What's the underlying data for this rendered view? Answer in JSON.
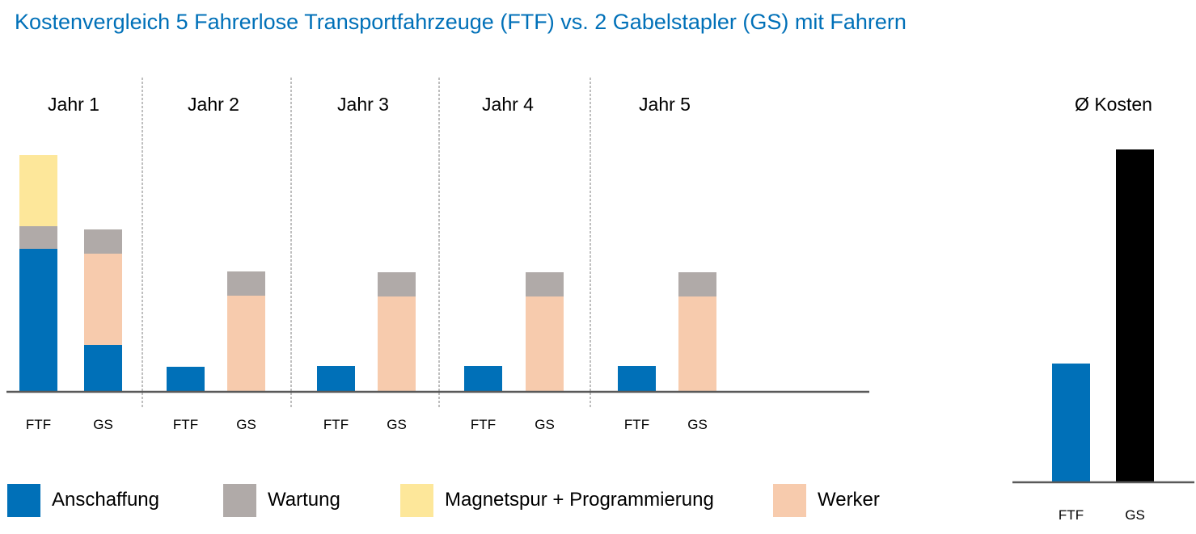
{
  "title": "Kostenvergleich 5 Fahrerlose Transportfahrzeuge (FTF) vs. 2 Gabelstapler (GS) mit Fahrern",
  "colors": {
    "anschaffung": "#0070b8",
    "wartung": "#b0aaa8",
    "magnetspur": "#fde79a",
    "werker": "#f7cbad",
    "avg_ftf": "#0070b8",
    "avg_gs": "#000000",
    "axis": "#595959",
    "divider": "#7f7f7f",
    "title": "#0070b8"
  },
  "chart_data": [
    {
      "type": "bar",
      "stacked": true,
      "title": "",
      "groups": [
        {
          "label": "Jahr 1",
          "categories": [
            "FTF",
            "GS"
          ]
        },
        {
          "label": "Jahr 2",
          "categories": [
            "FTF",
            "GS"
          ]
        },
        {
          "label": "Jahr 3",
          "categories": [
            "FTF",
            "GS"
          ]
        },
        {
          "label": "Jahr 4",
          "categories": [
            "FTF",
            "GS"
          ]
        },
        {
          "label": "Jahr 5",
          "categories": [
            "FTF",
            "GS"
          ]
        }
      ],
      "series": [
        {
          "name": "Anschaffung",
          "color_key": "anschaffung",
          "values": [
            [
              176,
              57
            ],
            [
              30,
              0
            ],
            [
              31,
              0
            ],
            [
              31,
              0
            ],
            [
              31,
              0
            ]
          ]
        },
        {
          "name": "Wartung",
          "color_key": "wartung",
          "values": [
            [
              28,
              30
            ],
            [
              0,
              30
            ],
            [
              0,
              30
            ],
            [
              0,
              30
            ],
            [
              0,
              30
            ]
          ]
        },
        {
          "name": "Magnetspur + Programmierung",
          "color_key": "magnetspur",
          "values": [
            [
              88,
              0
            ],
            [
              0,
              0
            ],
            [
              0,
              0
            ],
            [
              0,
              0
            ],
            [
              0,
              0
            ]
          ]
        },
        {
          "name": "Werker",
          "color_key": "werker",
          "values": [
            [
              0,
              113
            ],
            [
              0,
              118
            ],
            [
              0,
              117
            ],
            [
              0,
              117
            ],
            [
              0,
              117
            ]
          ]
        }
      ],
      "grid": false,
      "legend": "bottom"
    },
    {
      "type": "bar",
      "title": "Ø Kosten",
      "categories": [
        "FTF",
        "GS"
      ],
      "values": [
        146,
        411
      ],
      "colors": [
        "avg_ftf",
        "avg_gs"
      ],
      "grid": false
    }
  ],
  "legend": [
    {
      "label": "Anschaffung",
      "color_key": "anschaffung"
    },
    {
      "label": "Wartung",
      "color_key": "wartung"
    },
    {
      "label": "Magnetspur + Programmierung",
      "color_key": "magnetspur"
    },
    {
      "label": "Werker",
      "color_key": "werker"
    }
  ]
}
